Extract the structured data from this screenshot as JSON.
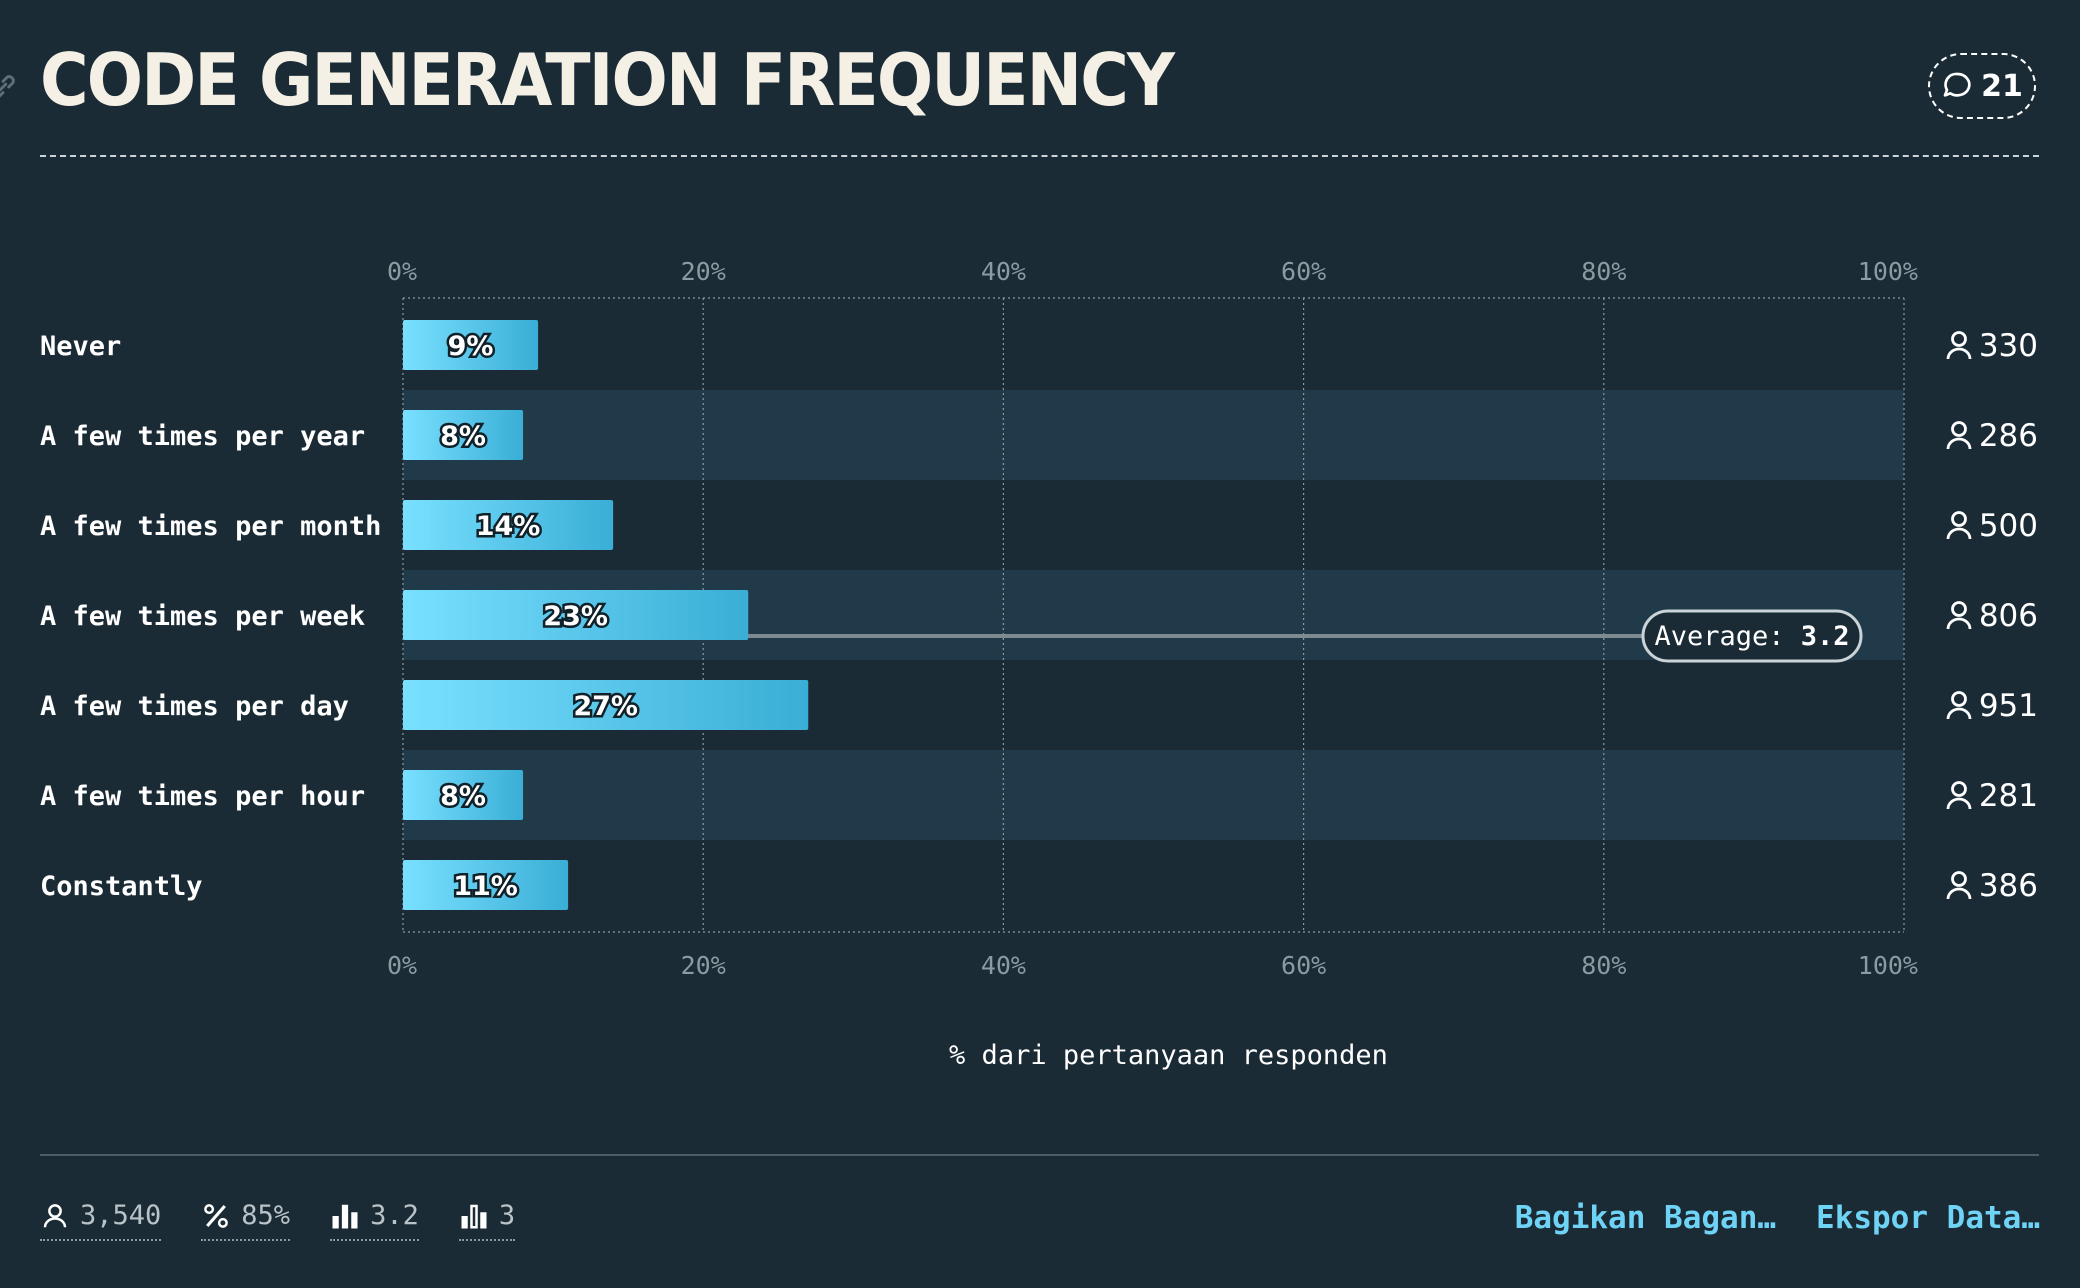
{
  "header": {
    "title": "CODE GENERATION FREQUENCY",
    "comment_count": "21"
  },
  "chart_data": {
    "type": "bar",
    "orientation": "horizontal",
    "categories": [
      "Never",
      "A few times per year",
      "A few times per month",
      "A few times per week",
      "A few times per day",
      "A few times per hour",
      "Constantly"
    ],
    "values": [
      9,
      8,
      14,
      23,
      27,
      8,
      11
    ],
    "value_labels": [
      "9%",
      "8%",
      "14%",
      "23%",
      "27%",
      "8%",
      "11%"
    ],
    "counts": [
      "330",
      "286",
      "500",
      "806",
      "951",
      "281",
      "386"
    ],
    "xlim": [
      0,
      100
    ],
    "x_ticks": [
      "0%",
      "20%",
      "40%",
      "60%",
      "80%",
      "100%"
    ],
    "xlabel": "% dari pertanyaan responden",
    "grid": true,
    "average": {
      "label": "Average:",
      "value": "3.2"
    },
    "colors": {
      "bar_start": "#79e0ff",
      "bar_end": "#3aaed6",
      "band": "#203a49",
      "avg_line": "#7f8a90"
    }
  },
  "footer": {
    "stats": [
      {
        "icon": "person-icon",
        "value": "3,540"
      },
      {
        "icon": "percent-icon",
        "value": "85%"
      },
      {
        "icon": "bar-chart-icon",
        "value": "3.2"
      },
      {
        "icon": "bar-chart-outline-icon",
        "value": "3"
      }
    ],
    "share_label": "Bagikan Bagan…",
    "export_label": "Ekspor Data…"
  }
}
